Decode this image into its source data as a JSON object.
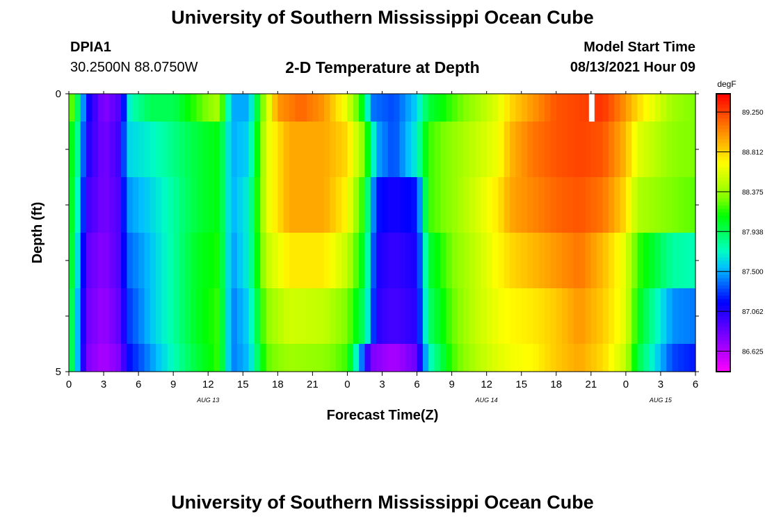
{
  "header": {
    "title": "University of Southern Mississippi Ocean Cube",
    "station_id": "DPIA1",
    "location": "30.2500N  88.0750W",
    "plot_title": "2-D Temperature at Depth",
    "model_start_label": "Model Start Time",
    "model_start_value": "08/13/2021 Hour 09"
  },
  "footer": {
    "title": "University of Southern Mississippi Ocean Cube"
  },
  "colors": {
    "palette": [
      "#ff00ff",
      "#bf00ff",
      "#8000ff",
      "#4000ff",
      "#0000ff",
      "#0060ff",
      "#00c0ff",
      "#00ffc0",
      "#00ff60",
      "#00ff00",
      "#80ff00",
      "#c0ff00",
      "#ffff00",
      "#ffc000",
      "#ff8000",
      "#ff4000",
      "#ff0000"
    ],
    "missing": "#ffffff"
  },
  "chart_data": {
    "type": "heatmap",
    "title": "2-D Temperature at Depth",
    "xlabel": "Forecast Time(Z)",
    "ylabel": "Depth (ft)",
    "x_tick_labels": [
      "0",
      "3",
      "6",
      "9",
      "12",
      "15",
      "18",
      "21",
      "0",
      "3",
      "6",
      "9",
      "12",
      "15",
      "18",
      "21",
      "0",
      "3",
      "6"
    ],
    "date_labels": [
      {
        "label": "AUG 13",
        "hour": 12
      },
      {
        "label": "AUG 14",
        "hour": 36
      },
      {
        "label": "AUG 15",
        "hour": 51
      }
    ],
    "x_range_hours": [
      0,
      54
    ],
    "y_tick_labels": [
      "0",
      "5"
    ],
    "y_range": [
      0,
      5
    ],
    "depth_levels": [
      0,
      1,
      2,
      3,
      4,
      5
    ],
    "colorbar": {
      "units": "degF",
      "range": [
        86.4,
        89.45
      ],
      "tick_labels": [
        "89.250",
        "88.812",
        "88.375",
        "87.938",
        "87.500",
        "87.062",
        "86.625"
      ],
      "tick_values": [
        89.25,
        88.812,
        88.375,
        87.938,
        87.5,
        87.062,
        86.625
      ]
    },
    "missing_cells": [
      {
        "hour": 45,
        "layer": 0
      }
    ],
    "layer_profiles": [
      {
        "depth_range": "0-0.5",
        "points": [
          [
            0,
            88.4
          ],
          [
            0.8,
            87.9
          ],
          [
            1.5,
            87.2
          ],
          [
            3,
            86.75
          ],
          [
            4.5,
            86.95
          ],
          [
            5.3,
            87.75
          ],
          [
            7,
            87.95
          ],
          [
            9,
            87.95
          ],
          [
            11,
            88.2
          ],
          [
            13,
            88.45
          ],
          [
            14,
            87.5
          ],
          [
            15.5,
            87.5
          ],
          [
            17,
            88.5
          ],
          [
            18,
            89.0
          ],
          [
            20,
            89.15
          ],
          [
            22,
            89.0
          ],
          [
            24,
            88.6
          ],
          [
            25.5,
            88.0
          ],
          [
            26,
            87.4
          ],
          [
            28,
            87.3
          ],
          [
            30,
            87.6
          ],
          [
            31,
            88.0
          ],
          [
            33,
            88.2
          ],
          [
            35,
            88.4
          ],
          [
            37,
            88.6
          ],
          [
            38,
            88.8
          ],
          [
            40,
            89.0
          ],
          [
            42,
            89.2
          ],
          [
            44,
            89.25
          ],
          [
            46,
            89.3
          ],
          [
            48,
            89.0
          ],
          [
            49,
            88.8
          ],
          [
            52,
            88.4
          ],
          [
            54,
            88.3
          ]
        ]
      },
      {
        "depth_range": "0.5-1.5",
        "points": [
          [
            0,
            88.2
          ],
          [
            0.8,
            87.8
          ],
          [
            1.5,
            87.1
          ],
          [
            3,
            86.8
          ],
          [
            4.5,
            87.0
          ],
          [
            5,
            87.6
          ],
          [
            7,
            87.7
          ],
          [
            9,
            87.85
          ],
          [
            11,
            88.0
          ],
          [
            13,
            88.1
          ],
          [
            14,
            87.5
          ],
          [
            15.5,
            87.6
          ],
          [
            17,
            88.6
          ],
          [
            19,
            88.95
          ],
          [
            22,
            88.95
          ],
          [
            24,
            88.8
          ],
          [
            25.5,
            88.3
          ],
          [
            26.5,
            87.5
          ],
          [
            28,
            87.3
          ],
          [
            30,
            87.7
          ],
          [
            31,
            88.2
          ],
          [
            33,
            88.35
          ],
          [
            35,
            88.5
          ],
          [
            37,
            88.65
          ],
          [
            38,
            88.9
          ],
          [
            40,
            89.1
          ],
          [
            42,
            89.2
          ],
          [
            44,
            89.25
          ],
          [
            46,
            89.2
          ],
          [
            48,
            88.9
          ],
          [
            49,
            88.6
          ],
          [
            52,
            88.35
          ],
          [
            54,
            88.3
          ]
        ]
      },
      {
        "depth_range": "1.5-2.5",
        "points": [
          [
            0,
            88.2
          ],
          [
            0.8,
            87.7
          ],
          [
            1.5,
            87.0
          ],
          [
            3,
            86.8
          ],
          [
            4.5,
            86.95
          ],
          [
            5,
            87.45
          ],
          [
            7,
            87.6
          ],
          [
            9,
            87.8
          ],
          [
            11,
            88.0
          ],
          [
            13,
            88.1
          ],
          [
            14,
            87.5
          ],
          [
            15.5,
            87.7
          ],
          [
            17,
            88.6
          ],
          [
            19,
            88.95
          ],
          [
            22,
            88.95
          ],
          [
            24,
            88.7
          ],
          [
            25.5,
            88.1
          ],
          [
            26.5,
            87.2
          ],
          [
            28,
            87.1
          ],
          [
            30,
            87.2
          ],
          [
            31,
            88.2
          ],
          [
            33,
            88.35
          ],
          [
            35,
            88.55
          ],
          [
            37,
            88.75
          ],
          [
            38,
            88.95
          ],
          [
            40,
            89.05
          ],
          [
            42,
            89.15
          ],
          [
            44,
            89.2
          ],
          [
            46,
            89.1
          ],
          [
            48,
            88.8
          ],
          [
            49,
            88.45
          ],
          [
            52,
            88.3
          ],
          [
            54,
            88.25
          ]
        ]
      },
      {
        "depth_range": "2.5-3.5",
        "points": [
          [
            0,
            88.2
          ],
          [
            0.8,
            87.6
          ],
          [
            1.5,
            86.9
          ],
          [
            3,
            86.75
          ],
          [
            4.5,
            86.95
          ],
          [
            5,
            87.35
          ],
          [
            7,
            87.55
          ],
          [
            9,
            87.8
          ],
          [
            11,
            88.05
          ],
          [
            13,
            88.15
          ],
          [
            14,
            87.45
          ],
          [
            15.5,
            87.7
          ],
          [
            17,
            88.5
          ],
          [
            19,
            88.75
          ],
          [
            22,
            88.75
          ],
          [
            24,
            88.5
          ],
          [
            25.5,
            88.0
          ],
          [
            26.5,
            87.1
          ],
          [
            28,
            87.0
          ],
          [
            30,
            87.1
          ],
          [
            31,
            88.0
          ],
          [
            33,
            88.3
          ],
          [
            35,
            88.5
          ],
          [
            37,
            88.7
          ],
          [
            38,
            88.8
          ],
          [
            40,
            88.9
          ],
          [
            42,
            89.0
          ],
          [
            44,
            89.1
          ],
          [
            46,
            88.9
          ],
          [
            48,
            88.6
          ],
          [
            49,
            88.2
          ],
          [
            52,
            87.8
          ],
          [
            54,
            87.75
          ]
        ]
      },
      {
        "depth_range": "3.5-4.5",
        "points": [
          [
            0,
            88.15
          ],
          [
            0.8,
            87.5
          ],
          [
            1.5,
            86.85
          ],
          [
            3,
            86.7
          ],
          [
            4.5,
            86.9
          ],
          [
            5,
            87.25
          ],
          [
            7,
            87.55
          ],
          [
            9,
            87.8
          ],
          [
            11,
            88.05
          ],
          [
            13,
            88.2
          ],
          [
            14,
            87.4
          ],
          [
            15.5,
            87.6
          ],
          [
            17,
            88.35
          ],
          [
            19,
            88.55
          ],
          [
            22,
            88.5
          ],
          [
            24,
            88.3
          ],
          [
            25.5,
            87.9
          ],
          [
            26.5,
            87.05
          ],
          [
            28,
            86.95
          ],
          [
            30,
            87.05
          ],
          [
            31,
            87.9
          ],
          [
            33,
            88.25
          ],
          [
            35,
            88.5
          ],
          [
            37,
            88.65
          ],
          [
            38,
            88.7
          ],
          [
            40,
            88.75
          ],
          [
            42,
            88.85
          ],
          [
            44,
            89.0
          ],
          [
            46,
            88.85
          ],
          [
            48,
            88.6
          ],
          [
            49,
            88.1
          ],
          [
            52,
            87.45
          ],
          [
            54,
            87.4
          ]
        ]
      },
      {
        "depth_range": "4.5-5",
        "points": [
          [
            0,
            88.15
          ],
          [
            0.8,
            87.5
          ],
          [
            1.5,
            86.8
          ],
          [
            3,
            86.65
          ],
          [
            4.5,
            86.8
          ],
          [
            5,
            87.15
          ],
          [
            7,
            87.45
          ],
          [
            9,
            87.75
          ],
          [
            11,
            88.0
          ],
          [
            13,
            88.2
          ],
          [
            14,
            87.4
          ],
          [
            15.5,
            87.55
          ],
          [
            17,
            88.25
          ],
          [
            19,
            88.4
          ],
          [
            22,
            88.35
          ],
          [
            24,
            88.2
          ],
          [
            25,
            87.6
          ],
          [
            26,
            86.8
          ],
          [
            28,
            86.65
          ],
          [
            30,
            86.85
          ],
          [
            31,
            87.7
          ],
          [
            33,
            88.2
          ],
          [
            35,
            88.45
          ],
          [
            37,
            88.6
          ],
          [
            38,
            88.65
          ],
          [
            40,
            88.7
          ],
          [
            42,
            88.85
          ],
          [
            44,
            88.95
          ],
          [
            46,
            88.8
          ],
          [
            48,
            88.5
          ],
          [
            49,
            88.0
          ],
          [
            52,
            87.3
          ],
          [
            54,
            87.2
          ]
        ]
      }
    ]
  }
}
